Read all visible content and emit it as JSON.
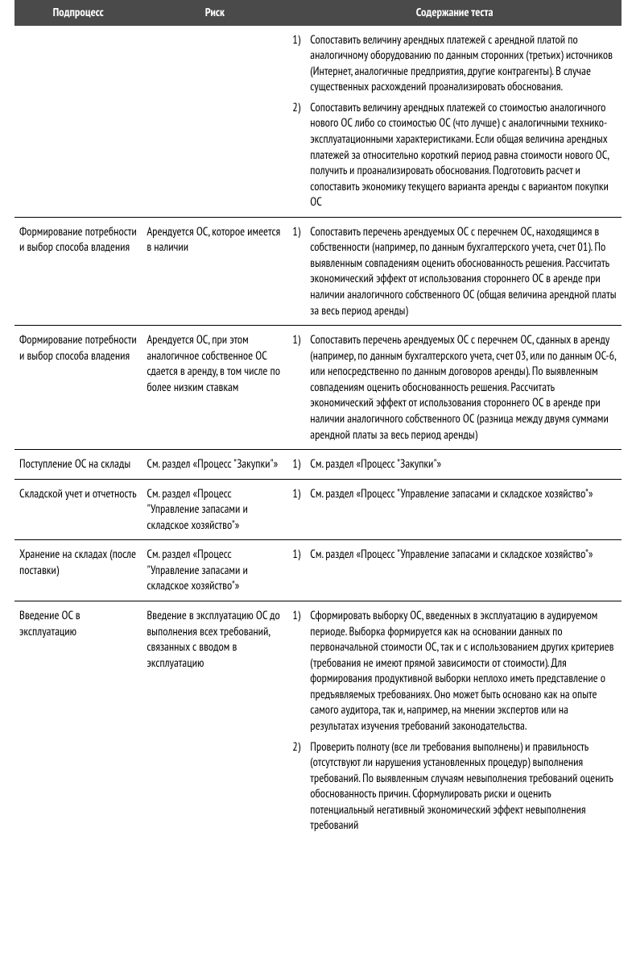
{
  "headers": {
    "subprocess": "Подпроцесс",
    "risk": "Риск",
    "test": "Содержание теста"
  },
  "rows": [
    {
      "subprocess": "",
      "risk": "",
      "tests": [
        {
          "n": "1)",
          "text": "Сопоставить величину арендных платежей с арендной платой по аналогичному оборудованию по данным сторонних (третьих) источников (Интернет, аналогичные предприятия, другие контрагенты). В случае существенных расхождений проанализировать обоснования."
        },
        {
          "n": "2)",
          "text": "Сопоставить величину арендных платежей со стоимостью аналогичного нового ОС либо со стоимостью ОС (что лучше) с аналогичными технико-эксплуатационными характеристиками. Если общая величина арендных платежей за относительно короткий период равна стоимости нового ОС, получить и проанализировать обоснования. Подготовить расчет и сопоставить экономику текущего варианта аренды с вариантом покупки ОС"
        }
      ]
    },
    {
      "subprocess": "Формирование потребности и выбор способа владения",
      "risk": "Арендуется ОС, которое имеется в наличии",
      "tests": [
        {
          "n": "1)",
          "text": "Сопоставить перечень арендуемых ОС с перечнем ОС, находящимся в собственности (например, по данным бухгалтерского учета, счет 01). По выявленным совпадениям оценить обоснованность решения. Рассчитать экономический эффект от использования стороннего ОС в аренде при наличии аналогичного собственного ОС (общая величина арендной платы за весь период аренды)"
        }
      ]
    },
    {
      "subprocess": "Формирование потребности и выбор способа владения",
      "risk": "Арендуется ОС, при этом аналогичное собственное ОС сдается в аренду, в том числе по более низким ставкам",
      "tests": [
        {
          "n": "1)",
          "text": "Сопоставить перечень арендуемых ОС с перечнем ОС, сданных в аренду (например, по данным бухгалтерского учета, счет 03, или по данным ОС-6, или непосредственно по данным договоров аренды). По выявленным совпадениям оценить обоснованность решения. Рассчитать экономический эффект от использования стороннего ОС в аренде при наличии аналогичного собственного ОС (разница между двумя суммами арендной платы за весь период аренды)"
        }
      ]
    },
    {
      "subprocess": "Поступление ОС на склады",
      "risk": "См. раздел «Процесс \"Закупки\"»",
      "tests": [
        {
          "n": "1)",
          "text": "См. раздел «Процесс \"Закупки\"»"
        }
      ]
    },
    {
      "subprocess": "Складской учет и отчетность",
      "risk": "См. раздел «Процесс \"Управление запасами и складское хозяйство\"»",
      "tests": [
        {
          "n": "1)",
          "text": "См. раздел «Процесс \"Управление запасами и складское хозяйство\"»"
        }
      ]
    },
    {
      "subprocess": "Хранение на складах (после поставки)",
      "risk": "См. раздел «Процесс \"Управление запасами и складское хозяйство\"»",
      "tests": [
        {
          "n": "1)",
          "text": "См. раздел «Процесс \"Управление запасами и складское хозяйство\"»"
        }
      ]
    },
    {
      "subprocess": "Введение ОС в эксплуатацию",
      "risk": "Введение в эксплуатацию ОС до выполнения всех требований, связанных с вводом в эксплуатацию",
      "tests": [
        {
          "n": "1)",
          "text": "Сформировать выборку ОС, введенных в эксплуатацию в аудируемом периоде. Выборка формируется как на основании данных по первоначальной стоимости ОС, так и с использованием других критериев (требования не имеют прямой зависимости от стоимости). Для формирования продуктивной выборки неплохо иметь представление о предъявляемых требованиях. Оно может быть основано как на опыте самого аудитора, так и, например, на мнении экспертов или на результатах изучения требований законодательства."
        },
        {
          "n": "2)",
          "text": "Проверить полноту (все ли требования выполнены) и правильность (отсутствуют ли нарушения установленных процедур) выполнения требований. По выявленным случаям невыполнения требований оценить обоснованность причин. Сформулировать риски и оценить потенциальный негативный экономический эффект невыполнения требований"
        }
      ]
    }
  ]
}
